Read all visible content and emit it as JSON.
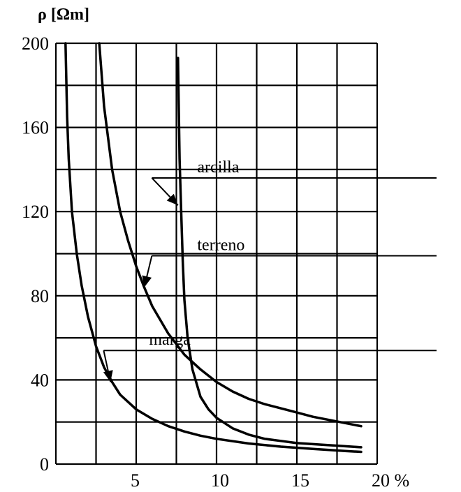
{
  "chart_data": {
    "type": "line",
    "ylabel": "ρ [Ωm]",
    "xlim": [
      0,
      20
    ],
    "ylim": [
      0,
      200
    ],
    "xticks": [
      5,
      10,
      15,
      20
    ],
    "xtick_labels": [
      "5",
      "10",
      "15",
      "20 %"
    ],
    "yticks": [
      0,
      40,
      80,
      120,
      160,
      200
    ],
    "ytick_labels": [
      "0",
      "40",
      "80",
      "120",
      "160",
      "200"
    ],
    "grid": true,
    "series": [
      {
        "name": "arcilla",
        "x": [
          7.6,
          7.7,
          7.8,
          7.9,
          8.0,
          8.2,
          8.5,
          9.0,
          9.5,
          10,
          11,
          12,
          13,
          14,
          15,
          16,
          17,
          18,
          19
        ],
        "y": [
          193,
          145,
          120,
          96,
          78,
          60,
          45,
          32,
          26,
          22,
          17,
          14,
          12,
          11,
          10,
          9.5,
          9,
          8.5,
          8
        ],
        "label_x": 8.8,
        "label_y": 136,
        "arrow_to_x": 7.6,
        "arrow_to_y": 123
      },
      {
        "name": "terreno",
        "x": [
          2.7,
          3,
          3.5,
          4,
          4.5,
          5,
          5.5,
          6,
          7,
          8,
          9,
          10,
          11,
          12,
          13,
          14,
          15,
          16,
          17,
          18,
          19
        ],
        "y": [
          200,
          170,
          140,
          120,
          106,
          94,
          84,
          75,
          62,
          52,
          45,
          39,
          34.5,
          31,
          28.5,
          26.5,
          24.5,
          22.5,
          21,
          19.5,
          18
        ],
        "label_x": 8.8,
        "label_y": 99,
        "arrow_to_x": 5.5,
        "arrow_to_y": 84
      },
      {
        "name": "marga",
        "x": [
          0.6,
          0.7,
          0.8,
          1,
          1.3,
          1.6,
          2,
          2.5,
          3,
          3.5,
          4,
          5,
          6,
          7,
          8,
          9,
          10,
          12,
          14,
          16,
          18,
          19
        ],
        "y": [
          200,
          165,
          145,
          120,
          100,
          85,
          70,
          56,
          46,
          39,
          33,
          26,
          21.5,
          18,
          15.5,
          13.5,
          12,
          9.8,
          8.3,
          7.2,
          6.2,
          5.8
        ],
        "label_x": 5.8,
        "label_y": 54,
        "arrow_to_x": 3.4,
        "arrow_to_y": 39
      }
    ]
  }
}
